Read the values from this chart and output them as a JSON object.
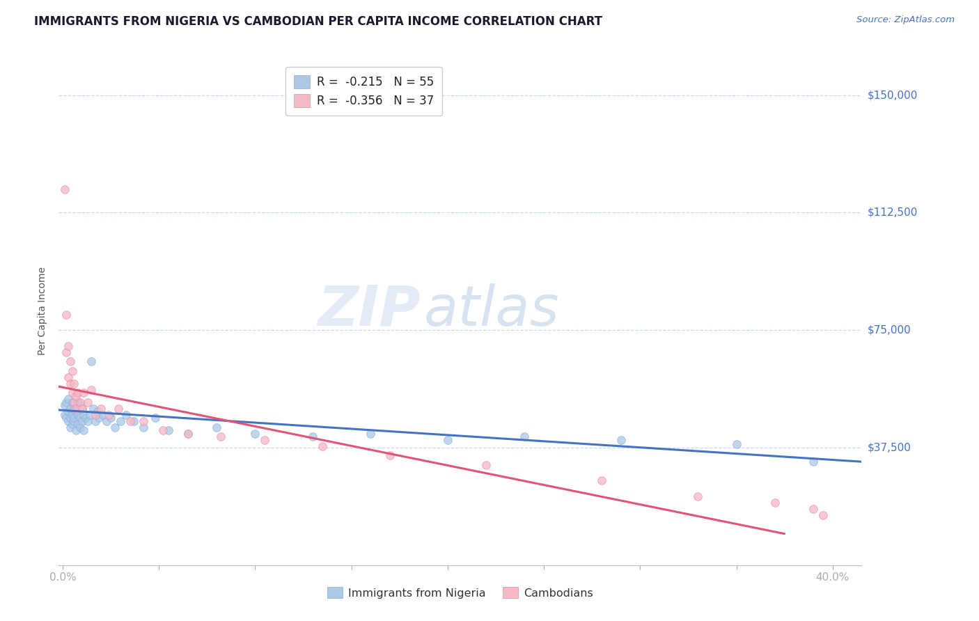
{
  "title": "IMMIGRANTS FROM NIGERIA VS CAMBODIAN PER CAPITA INCOME CORRELATION CHART",
  "source": "Source: ZipAtlas.com",
  "ylabel": "Per Capita Income",
  "ytick_labels": [
    "$37,500",
    "$75,000",
    "$112,500",
    "$150,000"
  ],
  "ytick_values": [
    37500,
    75000,
    112500,
    150000
  ],
  "ymin": 0,
  "ymax": 162500,
  "xmin": -0.002,
  "xmax": 0.415,
  "watermark_zip": "ZIP",
  "watermark_atlas": "atlas",
  "legend_line1": "R =  -0.215   N = 55",
  "legend_line2": "R =  -0.356   N = 37",
  "legend_color1": "#adc8e8",
  "legend_color2": "#f5b8c4",
  "nigeria_color": "#adc8e8",
  "nigeria_edge": "#7bafd4",
  "cambodian_color": "#f5b8c4",
  "cambodian_edge": "#e888a0",
  "nigeria_trend_color": "#4472c4",
  "cambodian_trend_color": "#e05575",
  "nigeria_x": [
    0.001,
    0.001,
    0.002,
    0.002,
    0.003,
    0.003,
    0.003,
    0.004,
    0.004,
    0.004,
    0.005,
    0.005,
    0.005,
    0.006,
    0.006,
    0.006,
    0.007,
    0.007,
    0.008,
    0.008,
    0.008,
    0.009,
    0.009,
    0.01,
    0.01,
    0.011,
    0.011,
    0.012,
    0.013,
    0.014,
    0.015,
    0.016,
    0.017,
    0.018,
    0.019,
    0.021,
    0.023,
    0.025,
    0.027,
    0.03,
    0.033,
    0.037,
    0.042,
    0.048,
    0.055,
    0.065,
    0.08,
    0.1,
    0.13,
    0.16,
    0.2,
    0.24,
    0.29,
    0.35,
    0.39
  ],
  "nigeria_y": [
    48000,
    51000,
    47000,
    52000,
    49000,
    53000,
    46000,
    50000,
    47000,
    44000,
    48000,
    52000,
    45000,
    46000,
    50000,
    47000,
    49000,
    43000,
    48000,
    52000,
    45000,
    47000,
    44000,
    50000,
    46000,
    48000,
    43000,
    47000,
    46000,
    48000,
    65000,
    50000,
    46000,
    49000,
    47000,
    48000,
    46000,
    47000,
    44000,
    46000,
    48000,
    46000,
    44000,
    47000,
    43000,
    42000,
    44000,
    42000,
    41000,
    42000,
    40000,
    41000,
    40000,
    38500,
    33000
  ],
  "cambodian_x": [
    0.001,
    0.002,
    0.002,
    0.003,
    0.003,
    0.004,
    0.004,
    0.005,
    0.005,
    0.006,
    0.006,
    0.007,
    0.007,
    0.008,
    0.009,
    0.01,
    0.011,
    0.013,
    0.015,
    0.017,
    0.02,
    0.024,
    0.029,
    0.035,
    0.042,
    0.052,
    0.065,
    0.082,
    0.105,
    0.135,
    0.17,
    0.22,
    0.28,
    0.33,
    0.37,
    0.39,
    0.395
  ],
  "cambodian_y": [
    120000,
    80000,
    68000,
    70000,
    60000,
    58000,
    65000,
    55000,
    62000,
    52000,
    58000,
    54000,
    50000,
    55000,
    52000,
    50000,
    55000,
    52000,
    56000,
    48000,
    50000,
    48000,
    50000,
    46000,
    46000,
    43000,
    42000,
    41000,
    40000,
    38000,
    35000,
    32000,
    27000,
    22000,
    20000,
    18000,
    16000
  ],
  "nigeria_trend_x": [
    -0.002,
    0.415
  ],
  "nigeria_trend_y": [
    49500,
    33000
  ],
  "cambodian_trend_x": [
    -0.002,
    0.375
  ],
  "cambodian_trend_y": [
    57000,
    10000
  ],
  "grid_color": "#c8d8ee",
  "background_color": "#ffffff",
  "title_color": "#1a1a2e",
  "ytick_color": "#4472c4",
  "source_color": "#4472c4",
  "xtick_left_label": "0.0%",
  "xtick_right_label": "40.0%",
  "bottom_legend_labels": [
    "Immigrants from Nigeria",
    "Cambodians"
  ]
}
